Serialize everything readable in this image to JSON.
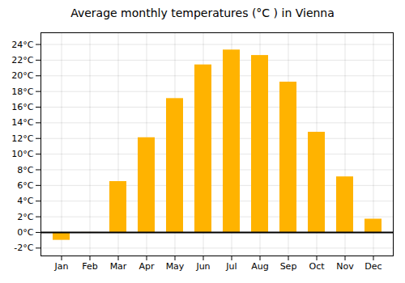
{
  "chart_data": {
    "type": "bar",
    "title": "Average monthly temperatures (°C ) in Vienna",
    "categories": [
      "Jan",
      "Feb",
      "Mar",
      "Apr",
      "May",
      "Jun",
      "Jul",
      "Aug",
      "Sep",
      "Oct",
      "Nov",
      "Dec"
    ],
    "values": [
      -1.0,
      -0.1,
      6.5,
      12.1,
      17.1,
      21.4,
      23.3,
      22.6,
      19.2,
      12.8,
      7.1,
      1.7
    ],
    "color": "#FFB300",
    "ylim": [
      -3,
      25.5
    ],
    "yticks": [
      {
        "value": -2,
        "label": "-2°C"
      },
      {
        "value": 0,
        "label": "0°C"
      },
      {
        "value": 2,
        "label": "2°C"
      },
      {
        "value": 4,
        "label": "4°C"
      },
      {
        "value": 6,
        "label": "6°C"
      },
      {
        "value": 8,
        "label": "8°C"
      },
      {
        "value": 10,
        "label": "10°C"
      },
      {
        "value": 12,
        "label": "12°C"
      },
      {
        "value": 14,
        "label": "14°C"
      },
      {
        "value": 16,
        "label": "16°C"
      },
      {
        "value": 18,
        "label": "18°C"
      },
      {
        "value": 20,
        "label": "20°C"
      },
      {
        "value": 22,
        "label": "22°C"
      },
      {
        "value": 24,
        "label": "24°C"
      }
    ],
    "grid": true
  }
}
